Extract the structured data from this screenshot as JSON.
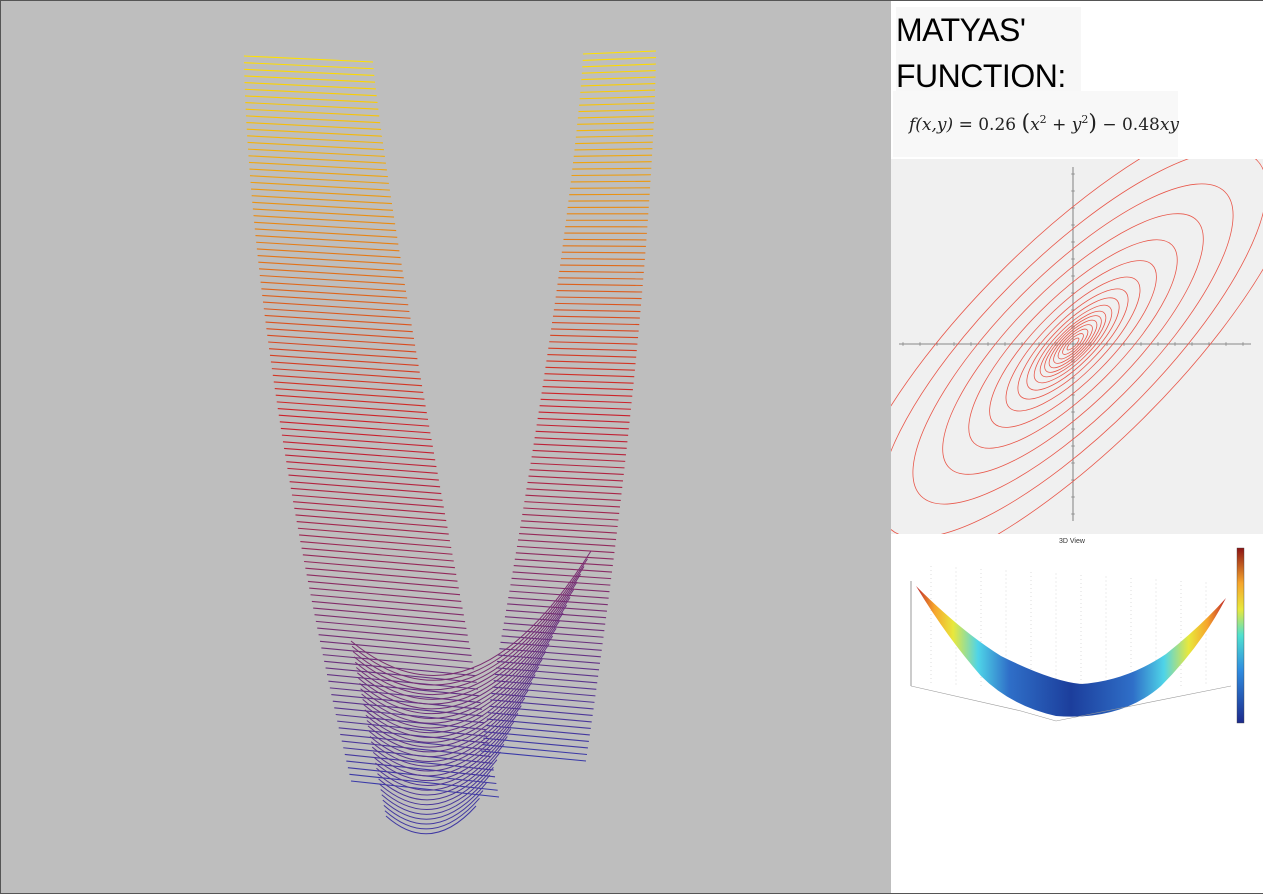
{
  "title": {
    "line1": "MATYAS'",
    "line2": "FUNCTION:"
  },
  "formula": {
    "lhs": "f(x,y)",
    "equals": "=",
    "coef1": "0.26",
    "inner": "x",
    "inner_exp": "2",
    "plus": "+ y",
    "inner_exp2": "2",
    "minus": "− 0.48",
    "tail": "xy"
  },
  "surface_view": {
    "title": "3D View"
  },
  "colors": {
    "main_background": "#bebebe",
    "wire_low": "#3a3aa8",
    "wire_mid": "#cc1f2a",
    "wire_high": "#ffe000",
    "contour": "#e8574a"
  }
}
